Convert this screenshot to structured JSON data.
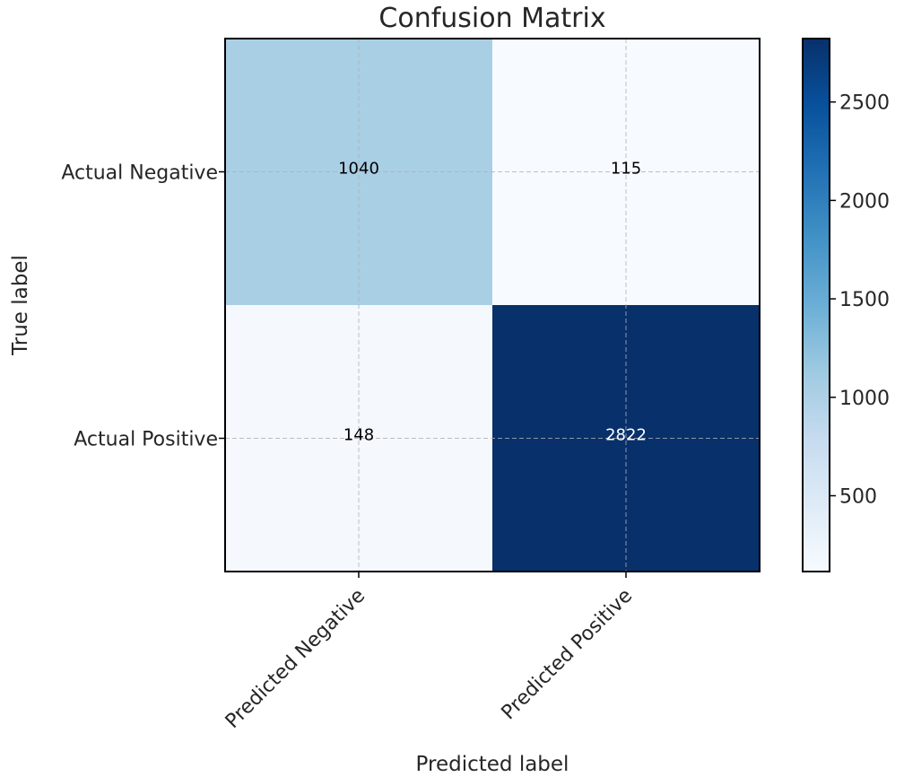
{
  "chart_data": {
    "type": "heatmap",
    "title": "Confusion Matrix",
    "xlabel": "Predicted label",
    "ylabel": "True label",
    "x_categories": [
      "Predicted Negative",
      "Predicted Positive"
    ],
    "y_categories": [
      "Actual Negative",
      "Actual Positive"
    ],
    "values": [
      [
        1040,
        115
      ],
      [
        148,
        2822
      ]
    ],
    "colormap": "Blues",
    "colorbar": {
      "min": 115,
      "max": 2822,
      "ticks": [
        500,
        1000,
        1500,
        2000,
        2500
      ]
    },
    "grid": true,
    "colors": {
      "low": "#f7fbff",
      "high": "#08306b",
      "text_dark": "#000000",
      "text_light": "#ffffff"
    }
  }
}
